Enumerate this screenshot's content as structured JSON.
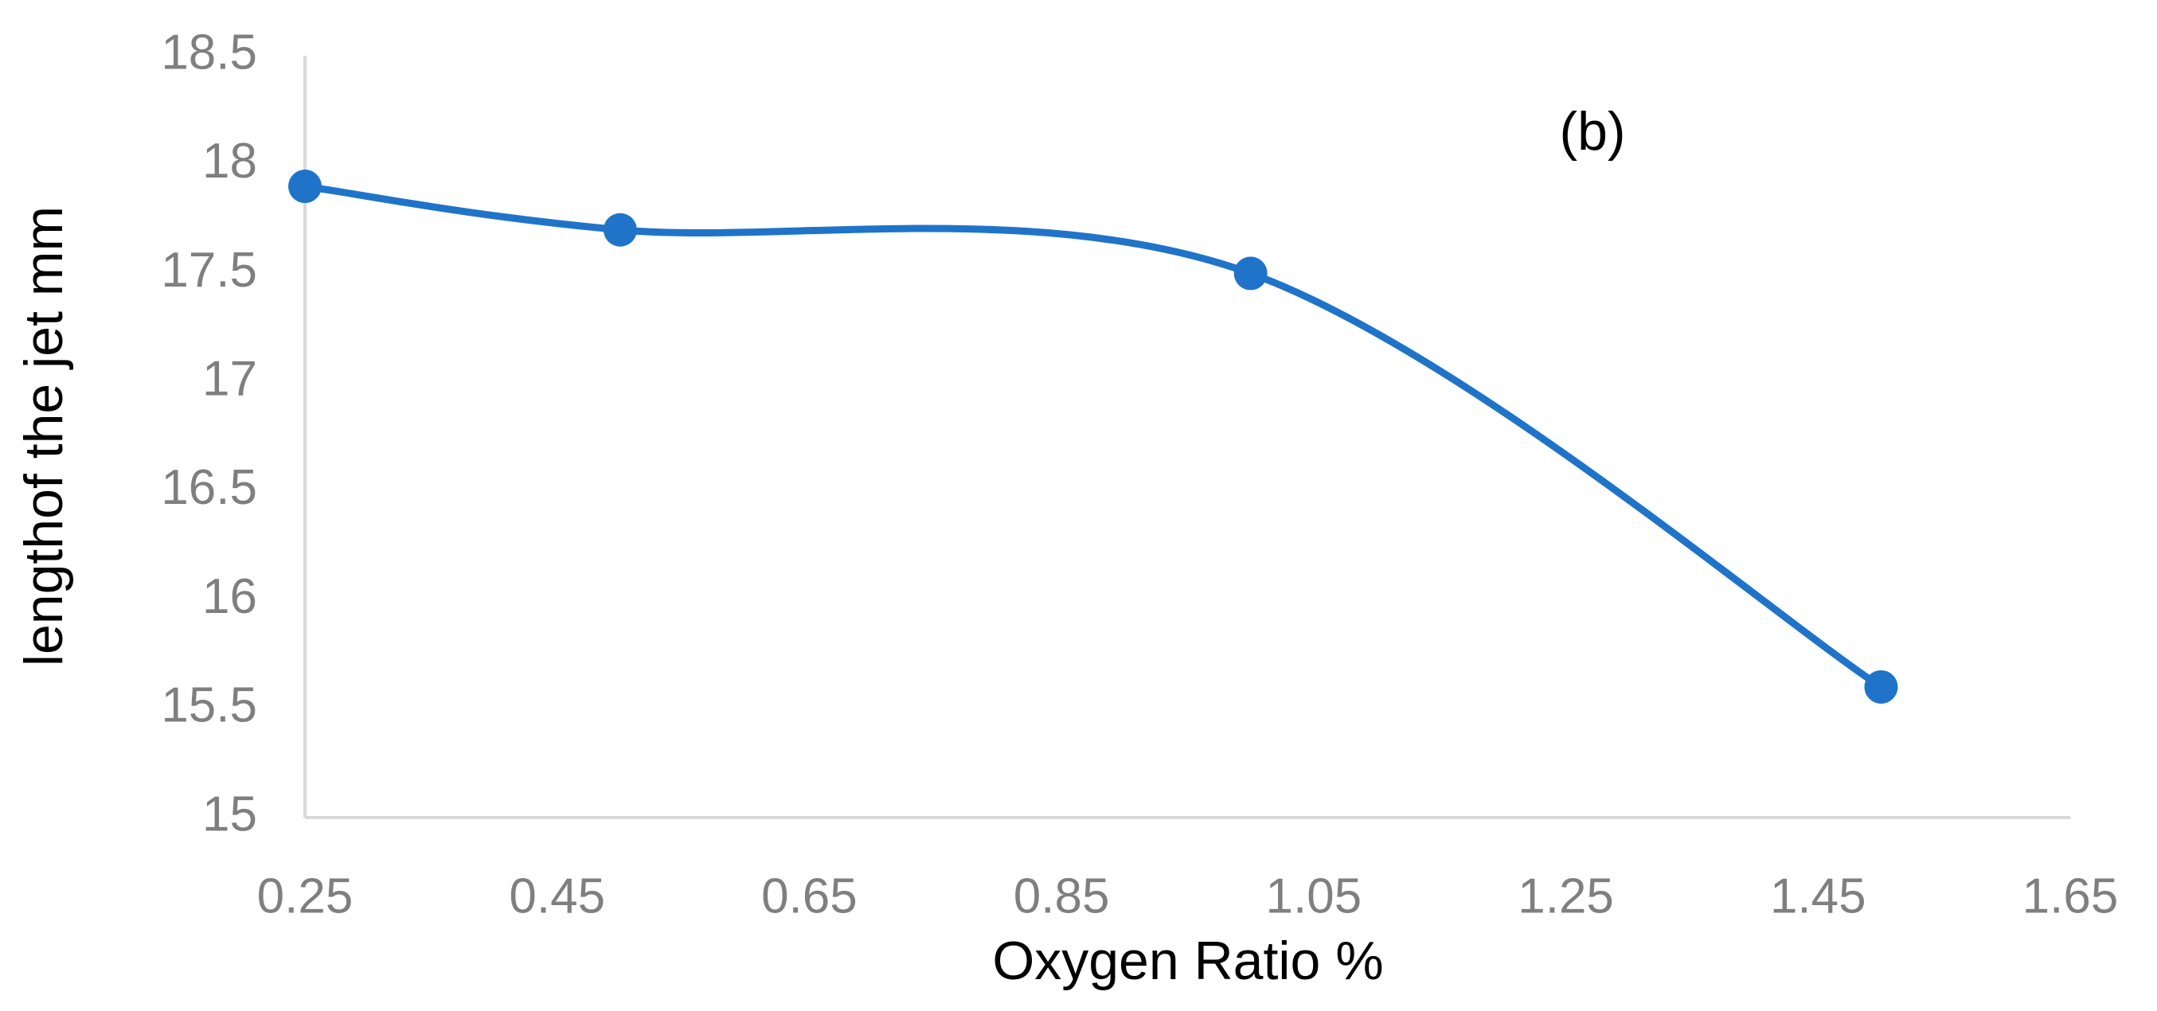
{
  "chart_data": {
    "type": "line",
    "smooth": true,
    "markers": true,
    "color": "#1f74c9",
    "x_label": "Oxygen Ratio %",
    "y_label": "lengthof the jet mm",
    "annotation": "(b)",
    "x": [
      0.25,
      0.5,
      1.0,
      1.5
    ],
    "values": [
      17.9,
      17.7,
      17.5,
      15.6
    ],
    "xlim": [
      0.25,
      1.65
    ],
    "xticks": [
      0.25,
      0.45,
      0.65,
      0.85,
      1.05,
      1.25,
      1.45,
      1.65
    ],
    "ylim": [
      15,
      18.5
    ],
    "yticks": [
      15,
      15.5,
      16,
      16.5,
      17,
      17.5,
      18,
      18.5
    ],
    "grid": false
  }
}
